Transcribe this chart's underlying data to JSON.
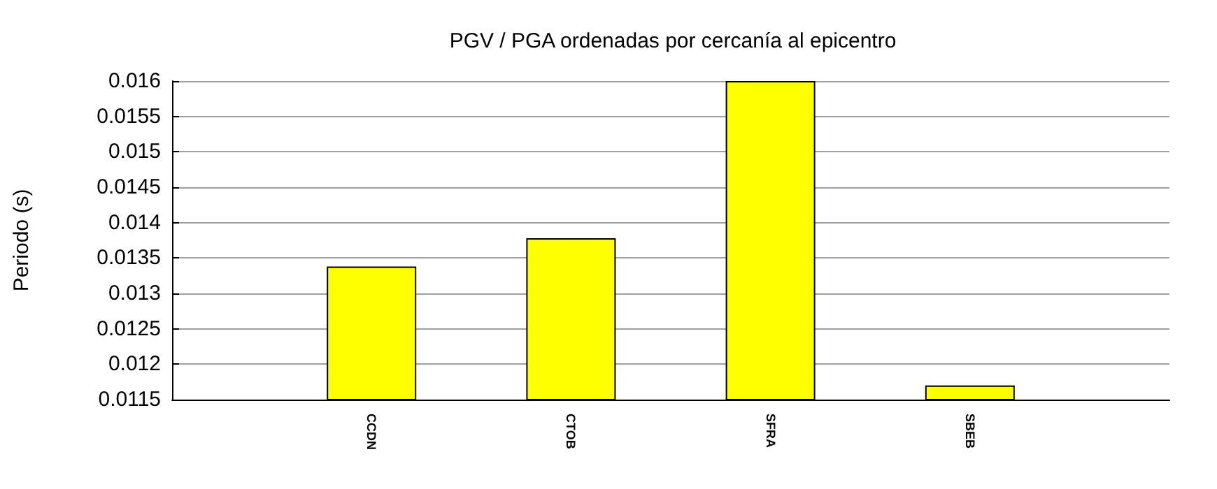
{
  "chart_data": {
    "type": "bar",
    "title": "PGV / PGA ordenadas por cercanía al epicentro",
    "ylabel": "Periodo (s)",
    "categories": [
      null,
      "CCDN",
      "CTOB",
      "SFRA",
      "SBEB",
      null
    ],
    "series": [
      {
        "color": "#ffff00",
        "values": [
          null,
          0.01338,
          0.01378,
          0.016,
          0.0117,
          null
        ]
      }
    ],
    "ylim": [
      0.0115,
      0.016
    ],
    "yticks": [
      0.0115,
      0.012,
      0.0125,
      0.013,
      0.0135,
      0.014,
      0.0145,
      0.015,
      0.0155,
      0.016
    ],
    "grid": "y"
  }
}
